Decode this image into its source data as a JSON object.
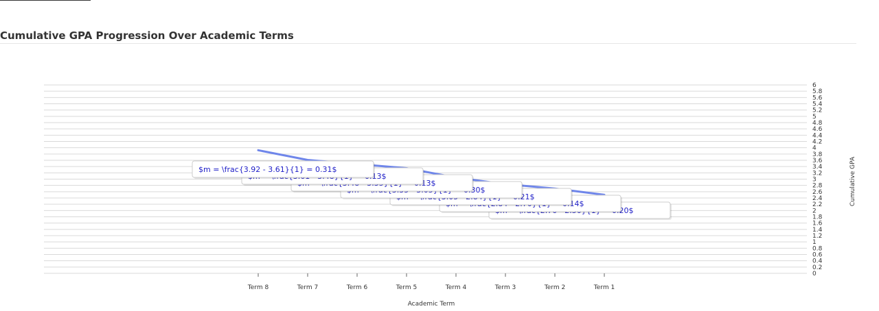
{
  "header": {
    "title": "Cumulative GPA Progression Over Academic Terms"
  },
  "chart_data": {
    "type": "line",
    "title": "Cumulative GPA Progression Over Academic Terms",
    "xlabel": "Academic Term",
    "ylabel": "Cumulative GPA",
    "ylim": [
      0,
      6
    ],
    "y_axis_position": "right",
    "y_ticks": [
      "0",
      "0.2",
      "0.4",
      "0.6",
      "0.8",
      "1",
      "1.2",
      "1.4",
      "1.6",
      "1.8",
      "2",
      "2.2",
      "2.4",
      "2.6",
      "2.8",
      "3",
      "3.2",
      "3.4",
      "3.6",
      "3.8",
      "4",
      "4.2",
      "4.4",
      "4.6",
      "4.8",
      "5",
      "5.2",
      "5.4",
      "5.6",
      "5.8",
      "6"
    ],
    "grid": true,
    "legend": "none",
    "color": "#6f86ea",
    "categories": [
      "Term 8",
      "Term 7",
      "Term 6",
      "Term 5",
      "Term 4",
      "Term 3",
      "Term 2",
      "Term 1"
    ],
    "series": [
      {
        "values": [
          3.92,
          3.61,
          3.48,
          3.35,
          3.05,
          2.84,
          2.7,
          2.5
        ]
      }
    ],
    "annotations": [
      "$m = \\frac{3.92 - 3.61}{1} = 0.31$",
      "$m = \\frac{3.61 - 3.48}{1} = 0.13$",
      "$m = \\frac{3.48 - 3.35}{1} = 0.13$",
      "$m = \\frac{3.35 - 3.05}{1} = 0.30$",
      "$m = \\frac{3.05 - 2.84}{1} = 0.21$",
      "$m = \\frac{2.84 - 2.70}{1} = 0.14$",
      "$m = \\frac{2.70 - 2.50}{1} = 0.20$"
    ]
  }
}
